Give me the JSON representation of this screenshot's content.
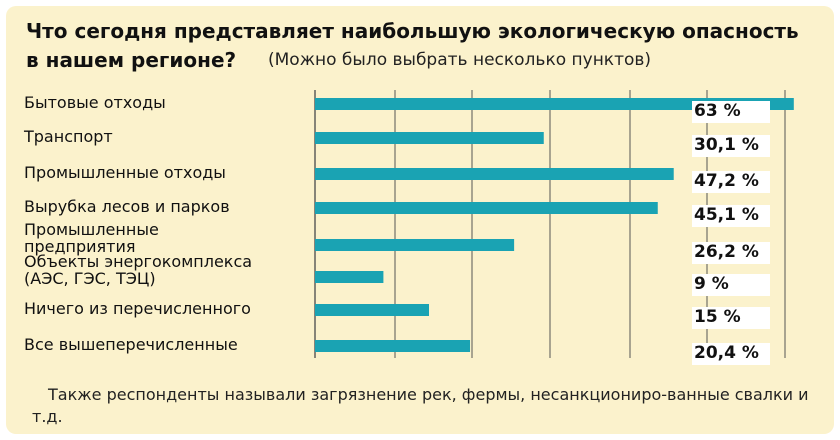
{
  "title_line1": "Что сегодня представляет наибольшую экологическую опасность",
  "title_line2": "в нашем регионе?",
  "subtitle": "(Можно было выбрать несколько пунктов)",
  "footnote": "Также респонденты называли загрязнение рек, фермы, несанкциониро-ванные свалки  и т.д.",
  "colors": {
    "bar": "#1aa3b3",
    "background": "#fbf2cc",
    "gridline": "#555555",
    "value_box": "#ffffff"
  },
  "chart_data": {
    "type": "bar",
    "orientation": "horizontal",
    "title": "Что сегодня представляет наибольшую экологическую опасность в нашем регионе?",
    "subtitle": "(Можно было выбрать несколько пунктов)",
    "categories": [
      {
        "line1": "Бытовые отходы",
        "line2": ""
      },
      {
        "line1": "Транспорт",
        "line2": ""
      },
      {
        "line1": "Промышленные отходы",
        "line2": ""
      },
      {
        "line1": "Вырубка лесов и парков",
        "line2": ""
      },
      {
        "line1": "Промышленные",
        "line2": "предприятия"
      },
      {
        "line1": "Объекты энергокомплекса",
        "line2": "(АЭС, ГЭС, ТЭЦ)"
      },
      {
        "line1": "Ничего из перечисленного",
        "line2": ""
      },
      {
        "line1": "Все вышеперечисленные",
        "line2": ""
      }
    ],
    "values": [
      63,
      30.1,
      47.2,
      45.1,
      26.2,
      9,
      15,
      20.4
    ],
    "value_labels": [
      "63 %",
      "30,1 %",
      "47,2 %",
      "45,1 %",
      "26,2 %",
      "9 %",
      "15 %",
      "20,4 %"
    ],
    "xlim": [
      0,
      65
    ],
    "unit": "%",
    "grid": true,
    "legend": "none"
  }
}
